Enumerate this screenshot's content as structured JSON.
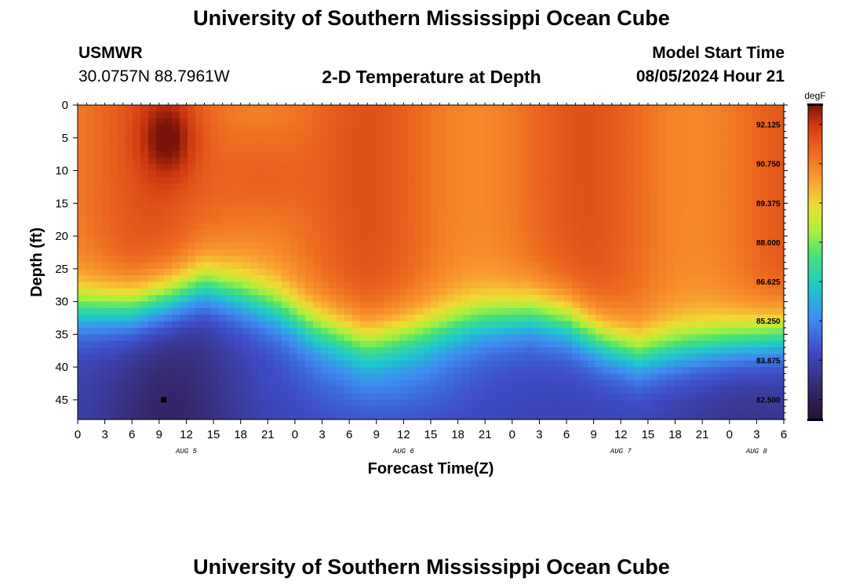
{
  "header": {
    "title_top": "University of Southern Mississippi Ocean Cube",
    "station": "USMWR",
    "coords": "30.0757N  88.7961W",
    "plot_title": "2-D Temperature at Depth",
    "model_start_label": "Model Start Time",
    "model_start_value": "08/05/2024 Hour 21"
  },
  "footer": {
    "title_bottom": "University of Southern Mississippi Ocean Cube"
  },
  "chart_data": {
    "type": "heatmap",
    "title": "2-D Temperature at Depth",
    "xlabel": "Forecast Time(Z)",
    "ylabel": "Depth (ft)",
    "x_range_hours": [
      0,
      78
    ],
    "y_range_ft": [
      0,
      48
    ],
    "x_ticks": [
      "0",
      "3",
      "6",
      "9",
      "12",
      "15",
      "18",
      "21",
      "0",
      "3",
      "6",
      "9",
      "12",
      "15",
      "18",
      "21",
      "0",
      "3",
      "6",
      "9",
      "12",
      "15",
      "18",
      "21",
      "0",
      "3",
      "6"
    ],
    "date_labels": [
      {
        "text": "AUG 5",
        "hour": 12
      },
      {
        "text": "AUG 6",
        "hour": 36
      },
      {
        "text": "AUG 7",
        "hour": 60
      },
      {
        "text": "AUG 8",
        "hour": 75
      }
    ],
    "y_ticks": [
      0,
      5,
      10,
      15,
      20,
      25,
      30,
      35,
      40,
      45
    ],
    "colorbar": {
      "unit": "degF",
      "min": 81.8,
      "max": 92.8,
      "ticks": [
        "92.125",
        "90.750",
        "89.375",
        "88.000",
        "86.625",
        "85.250",
        "83.875",
        "82.500"
      ]
    },
    "thermocline_depth_ft": {
      "hours": [
        0,
        6,
        10,
        14,
        18,
        22,
        26,
        32,
        38,
        44,
        50,
        54,
        58,
        62,
        66,
        72,
        78
      ],
      "depth": [
        31,
        31,
        29.5,
        27.5,
        29,
        31,
        34,
        36.5,
        35,
        33,
        32,
        33,
        36,
        38,
        37,
        36,
        35
      ]
    },
    "marker": {
      "hour": 9.5,
      "depth_ft": 45
    }
  }
}
